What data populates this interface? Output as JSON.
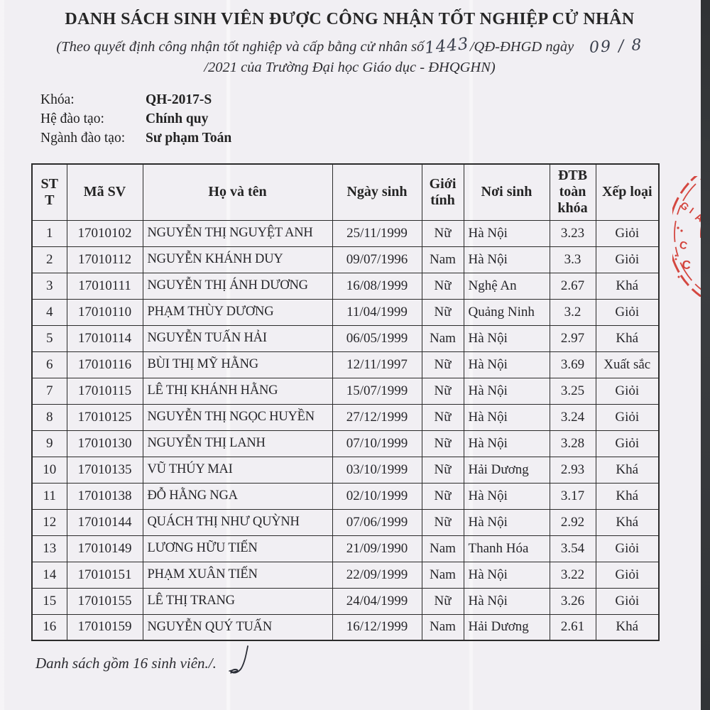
{
  "page": {
    "title": "DANH SÁCH SINH VIÊN ĐƯỢC CÔNG NHẬN TỐT NGHIỆP CỬ NHÂN",
    "subtitle": {
      "part1": "(Theo quyết định công nhận tốt nghiệp và cấp bằng cử nhân số",
      "handwritten_number": "1443",
      "part2": "/QĐ-ĐHGD ngày",
      "handwritten_date": "09 / 8",
      "line2": "/2021 của Trường Đại học Giáo dục - ĐHQGHN)"
    },
    "info": [
      {
        "label": "Khóa:",
        "value": "QH-2017-S"
      },
      {
        "label": "Hệ đào tạo:",
        "value": "Chính quy"
      },
      {
        "label": "Ngành đào tạo:",
        "value": "Sư phạm Toán"
      }
    ],
    "footer": "Danh sách gồm 16 sinh viên./."
  },
  "table": {
    "columns": [
      "STT",
      "Mã SV",
      "Họ và tên",
      "Ngày sinh",
      "Giới tính",
      "Nơi sinh",
      "ĐTB toàn khóa",
      "Xếp loại"
    ],
    "rows": [
      [
        "1",
        "17010102",
        "NGUYỄN THỊ NGUYỆT ANH",
        "25/11/1999",
        "Nữ",
        "Hà Nội",
        "3.23",
        "Giỏi"
      ],
      [
        "2",
        "17010112",
        "NGUYỄN KHÁNH DUY",
        "09/07/1996",
        "Nam",
        "Hà Nội",
        "3.3",
        "Giỏi"
      ],
      [
        "3",
        "17010111",
        "NGUYỄN THỊ ÁNH DƯƠNG",
        "16/08/1999",
        "Nữ",
        "Nghệ An",
        "2.67",
        "Khá"
      ],
      [
        "4",
        "17010110",
        "PHẠM THÙY DƯƠNG",
        "11/04/1999",
        "Nữ",
        "Quảng Ninh",
        "3.2",
        "Giỏi"
      ],
      [
        "5",
        "17010114",
        "NGUYỄN TUẤN HẢI",
        "06/05/1999",
        "Nam",
        "Hà Nội",
        "2.97",
        "Khá"
      ],
      [
        "6",
        "17010116",
        "BÙI THỊ MỸ HẰNG",
        "12/11/1997",
        "Nữ",
        "Hà Nội",
        "3.69",
        "Xuất sắc"
      ],
      [
        "7",
        "17010115",
        "LÊ THỊ KHÁNH HẰNG",
        "15/07/1999",
        "Nữ",
        "Hà Nội",
        "3.25",
        "Giỏi"
      ],
      [
        "8",
        "17010125",
        "NGUYỄN THỊ NGỌC HUYỀN",
        "27/12/1999",
        "Nữ",
        "Hà Nội",
        "3.24",
        "Giỏi"
      ],
      [
        "9",
        "17010130",
        "NGUYỄN THỊ LANH",
        "07/10/1999",
        "Nữ",
        "Hà Nội",
        "3.28",
        "Giỏi"
      ],
      [
        "10",
        "17010135",
        "VŨ THÚY MAI",
        "03/10/1999",
        "Nữ",
        "Hải Dương",
        "2.93",
        "Khá"
      ],
      [
        "11",
        "17010138",
        "ĐỖ HẰNG NGA",
        "02/10/1999",
        "Nữ",
        "Hà Nội",
        "3.17",
        "Khá"
      ],
      [
        "12",
        "17010144",
        "QUÁCH THỊ NHƯ QUỲNH",
        "07/06/1999",
        "Nữ",
        "Hà Nội",
        "2.92",
        "Khá"
      ],
      [
        "13",
        "17010149",
        "LƯƠNG HỮU TIẾN",
        "21/09/1990",
        "Nam",
        "Thanh Hóa",
        "3.54",
        "Giỏi"
      ],
      [
        "14",
        "17010151",
        "PHẠM XUÂN TIẾN",
        "22/09/1999",
        "Nam",
        "Hà Nội",
        "3.22",
        "Giỏi"
      ],
      [
        "15",
        "17010155",
        "LÊ THỊ TRANG",
        "24/04/1999",
        "Nữ",
        "Hà Nội",
        "3.26",
        "Giỏi"
      ],
      [
        "16",
        "17010159",
        "NGUYỄN QUÝ TUẤN",
        "16/12/1999",
        "Nam",
        "Hải Dương",
        "2.61",
        "Khá"
      ]
    ]
  },
  "stamp": {
    "letters": {
      "g": "G",
      "i": "I",
      "a": "A",
      "c1": "C",
      "c2": "C"
    },
    "color": "#d0342c"
  },
  "colors": {
    "paper": "#f1eff3",
    "ink": "#1f1f1f",
    "border": "#2b2b2b",
    "scan_edge": "#35373a",
    "stamp_red": "#d0342c"
  }
}
